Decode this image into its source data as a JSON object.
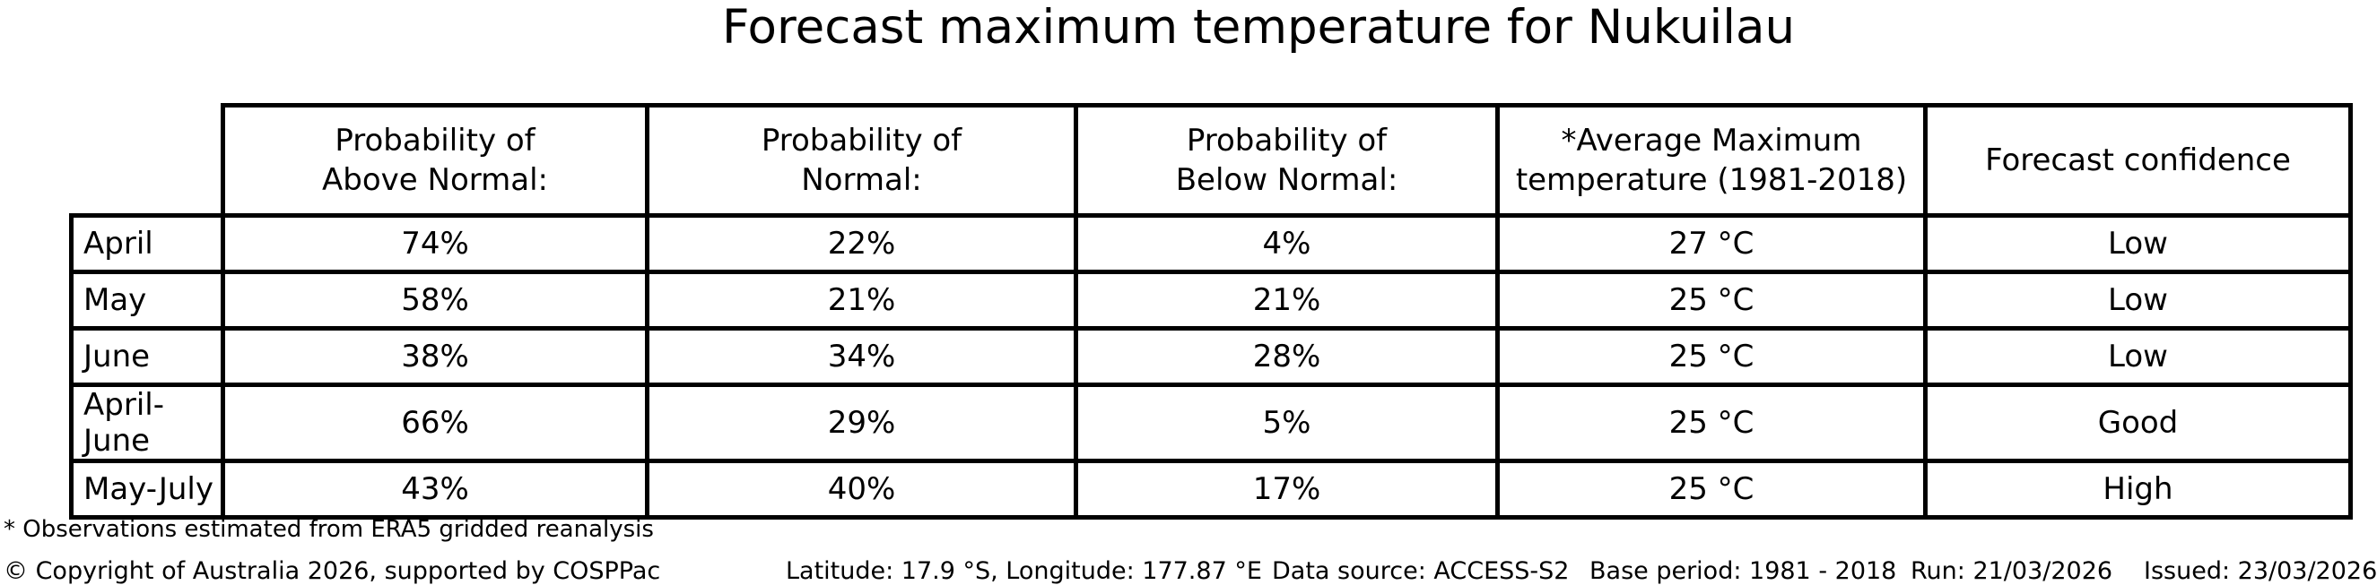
{
  "title": "Forecast maximum temperature for Nukuilau",
  "table": {
    "headers": {
      "above": "Probability of\nAbove Normal:",
      "normal": "Probability of\nNormal:",
      "below": "Probability of\nBelow Normal:",
      "avg_max": "*Average Maximum\ntemperature (1981-2018)",
      "confidence": "Forecast confidence"
    }
  },
  "chart_data": {
    "type": "table",
    "title": "Forecast maximum temperature for Nukuilau",
    "columns": [
      "",
      "Probability of Above Normal:",
      "Probability of Normal:",
      "Probability of Below Normal:",
      "*Average Maximum temperature (1981-2018)",
      "Forecast confidence"
    ],
    "rows": [
      [
        "April",
        "74%",
        "22%",
        "4%",
        "27 °C",
        "Low"
      ],
      [
        "May",
        "58%",
        "21%",
        "21%",
        "25 °C",
        "Low"
      ],
      [
        "June",
        "38%",
        "34%",
        "28%",
        "25 °C",
        "Low"
      ],
      [
        "April-June",
        "66%",
        "29%",
        "5%",
        "25 °C",
        "Good"
      ],
      [
        "May-July",
        "43%",
        "40%",
        "17%",
        "25 °C",
        "High"
      ]
    ]
  },
  "footnote": "* Observations estimated from ERA5 gridded reanalysis",
  "footer": {
    "copyright": "© Copyright of Australia 2026, supported by COSPPac",
    "location": "Latitude: 17.9 °S, Longitude: 177.87 °E",
    "data_source": "Data source: ACCESS-S2",
    "base_period": "Base period: 1981 - 2018",
    "run": "Run: 21/03/2026",
    "issued": "Issued: 23/03/2026"
  }
}
